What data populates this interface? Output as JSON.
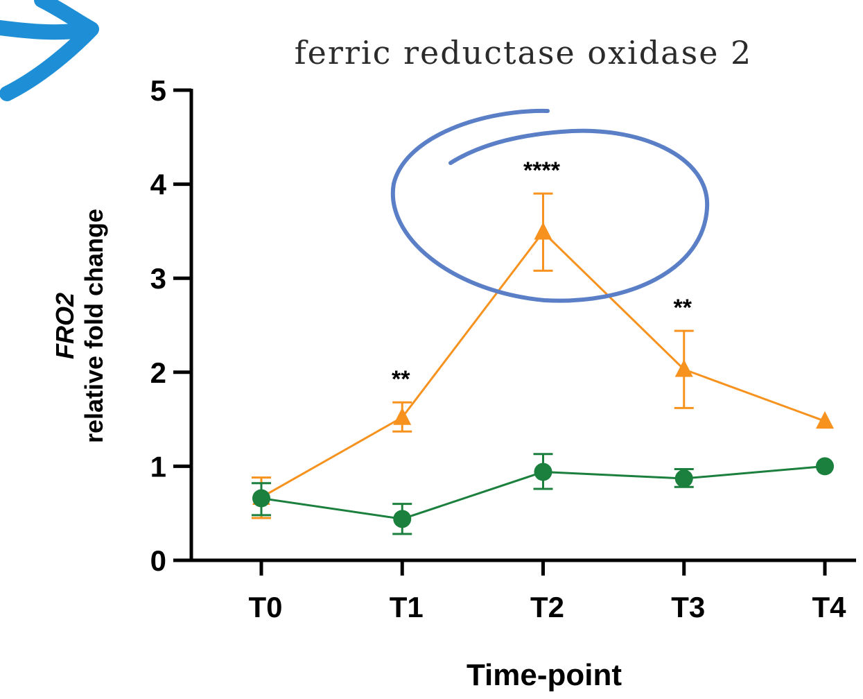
{
  "chart_data": {
    "type": "line",
    "title": "ferric reductase oxidase 2",
    "xlabel": "Time-point",
    "ylabel_gene": "FRO2",
    "ylabel_desc": "relative fold change",
    "categories": [
      "T0",
      "T1",
      "T2",
      "T3",
      "T4"
    ],
    "ylim": [
      0,
      5
    ],
    "yticks": [
      "0",
      "1",
      "2",
      "3",
      "4",
      "5"
    ],
    "series": [
      {
        "color": "#f7921e",
        "marker": "triangle",
        "values": [
          0.67,
          1.52,
          3.49,
          2.03,
          1.48
        ],
        "err_low": [
          0.45,
          1.37,
          3.08,
          1.62,
          1.48
        ],
        "err_high": [
          0.88,
          1.68,
          3.9,
          2.44,
          1.48
        ]
      },
      {
        "color": "#1b7f3e",
        "marker": "circle",
        "values": [
          0.66,
          0.44,
          0.94,
          0.87,
          1.0
        ],
        "err_low": [
          0.48,
          0.28,
          0.76,
          0.78,
          1.0
        ],
        "err_high": [
          0.82,
          0.6,
          1.13,
          0.97,
          1.0
        ]
      }
    ],
    "annotations": [
      {
        "category": "T1",
        "text": "**"
      },
      {
        "category": "T2",
        "text": "****"
      },
      {
        "category": "T3",
        "text": "**"
      }
    ],
    "highlight_color": "#5a7fc6",
    "arrow_color": "#1e8fd6"
  }
}
